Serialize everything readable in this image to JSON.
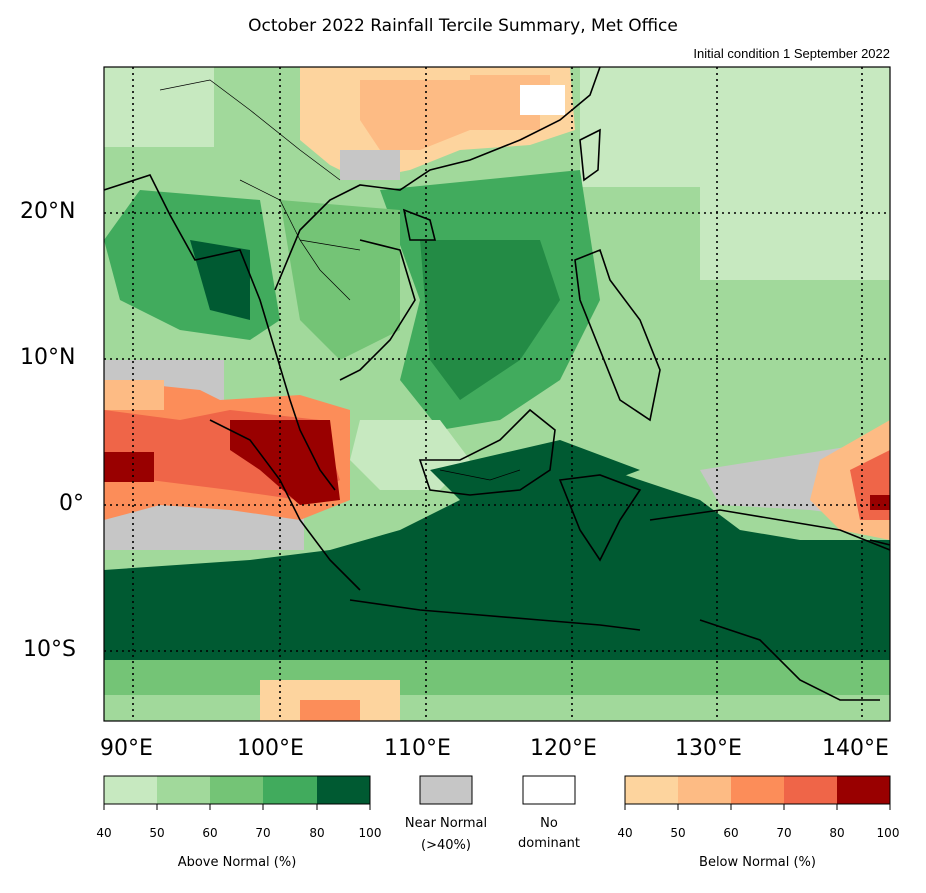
{
  "title": "October 2022 Rainfall Tercile Summary, Met Office",
  "subtitle": "Initial condition 1 September 2022",
  "lon_ticks": [
    "90°E",
    "100°E",
    "110°E",
    "120°E",
    "130°E",
    "140°E"
  ],
  "lat_ticks": [
    "20°N",
    "10°N",
    "0°",
    "10°S"
  ],
  "legend": {
    "above": {
      "title": "Above Normal (%)",
      "ticks": [
        "40",
        "50",
        "60",
        "70",
        "80",
        "100"
      ],
      "colors": [
        "#c7e9c0",
        "#a1d99b",
        "#74c476",
        "#41ab5d",
        "#005a32"
      ]
    },
    "near": {
      "label_line1": "Near Normal",
      "label_line2": "(>40%)",
      "color": "#c6c6c6"
    },
    "nodom": {
      "label_line1": "No",
      "label_line2": "dominant",
      "color": "#ffffff"
    },
    "below": {
      "title": "Below Normal (%)",
      "ticks": [
        "40",
        "50",
        "60",
        "70",
        "80",
        "100"
      ],
      "colors": [
        "#fdd49e",
        "#fdbb84",
        "#fc8d59",
        "#ef6548",
        "#990000"
      ]
    }
  }
}
